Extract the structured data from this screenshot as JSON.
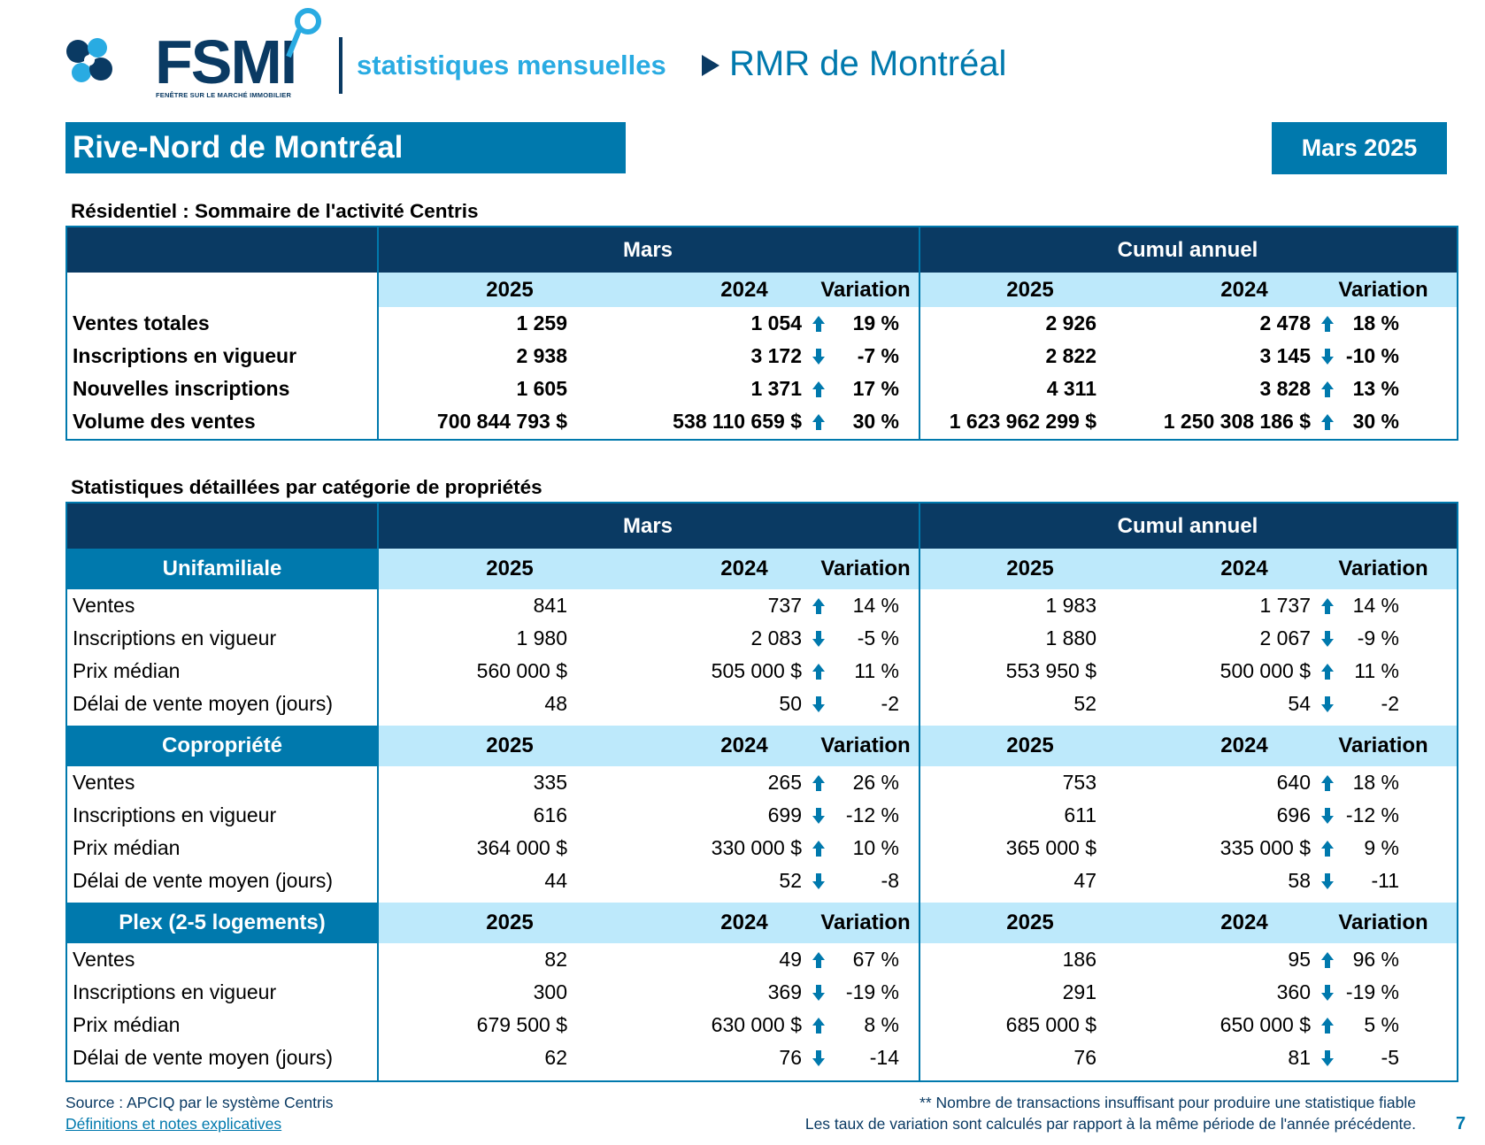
{
  "brand": {
    "logo_text": "FSMI",
    "logo_tagline": "FENÊTRE SUR LE MARCHÉ IMMOBILIER",
    "report_type": "statistiques mensuelles",
    "market": "RMR de Montréal"
  },
  "region": "Rive-Nord de Montréal",
  "period": "Mars 2025",
  "colors": {
    "dark_blue": "#0a3a63",
    "mid_blue": "#0079ad",
    "light_blue": "#bde9fb",
    "cyan": "#29abe2"
  },
  "summary": {
    "title": "Résidentiel : Sommaire de l'activité Centris",
    "group_month": "Mars",
    "group_ytd": "Cumul annuel",
    "col_2025": "2025",
    "col_2024": "2024",
    "col_var": "Variation",
    "rows": [
      {
        "label": "Ventes totales",
        "m25": "1 259",
        "m24": "1 054",
        "mdir": "up",
        "mvar": "19 %",
        "y25": "2 926",
        "y24": "2 478",
        "ydir": "up",
        "yvar": "18 %"
      },
      {
        "label": "Inscriptions en vigueur",
        "m25": "2 938",
        "m24": "3 172",
        "mdir": "down",
        "mvar": "-7 %",
        "y25": "2 822",
        "y24": "3 145",
        "ydir": "down",
        "yvar": "-10 %"
      },
      {
        "label": "Nouvelles inscriptions",
        "m25": "1 605",
        "m24": "1 371",
        "mdir": "up",
        "mvar": "17 %",
        "y25": "4 311",
        "y24": "3 828",
        "ydir": "up",
        "yvar": "13 %"
      },
      {
        "label": "Volume des ventes",
        "m25": "700 844 793  $",
        "m24": "538 110 659  $",
        "mdir": "up",
        "mvar": "30 %",
        "y25": "1 623 962 299  $",
        "y24": "1 250 308 186  $",
        "ydir": "up",
        "yvar": "30 %"
      }
    ]
  },
  "detail": {
    "title": "Statistiques détaillées par catégorie de propriétés",
    "group_month": "Mars",
    "group_ytd": "Cumul annuel",
    "col_2025": "2025",
    "col_2024": "2024",
    "col_var": "Variation",
    "categories": [
      {
        "name": "Unifamiliale",
        "rows": [
          {
            "label": "Ventes",
            "m25": "841",
            "m24": "737",
            "mdir": "up",
            "mvar": "14 %",
            "y25": "1 983",
            "y24": "1 737",
            "ydir": "up",
            "yvar": "14 %"
          },
          {
            "label": "Inscriptions en vigueur",
            "m25": "1 980",
            "m24": "2 083",
            "mdir": "down",
            "mvar": "-5 %",
            "y25": "1 880",
            "y24": "2 067",
            "ydir": "down",
            "yvar": "-9 %"
          },
          {
            "label": "Prix médian",
            "m25": "560 000 $",
            "m24": "505 000 $",
            "mdir": "up",
            "mvar": "11 %",
            "y25": "553 950 $",
            "y24": "500 000 $",
            "ydir": "up",
            "yvar": "11 %"
          },
          {
            "label": "Délai de vente moyen (jours)",
            "m25": "48",
            "m24": "50",
            "mdir": "down",
            "mvar": "-2",
            "y25": "52",
            "y24": "54",
            "ydir": "down",
            "yvar": "-2"
          }
        ]
      },
      {
        "name": "Copropriété",
        "rows": [
          {
            "label": "Ventes",
            "m25": "335",
            "m24": "265",
            "mdir": "up",
            "mvar": "26 %",
            "y25": "753",
            "y24": "640",
            "ydir": "up",
            "yvar": "18 %"
          },
          {
            "label": "Inscriptions en vigueur",
            "m25": "616",
            "m24": "699",
            "mdir": "down",
            "mvar": "-12 %",
            "y25": "611",
            "y24": "696",
            "ydir": "down",
            "yvar": "-12 %"
          },
          {
            "label": "Prix médian",
            "m25": "364 000 $",
            "m24": "330 000 $",
            "mdir": "up",
            "mvar": "10 %",
            "y25": "365 000 $",
            "y24": "335 000 $",
            "ydir": "up",
            "yvar": "9 %"
          },
          {
            "label": "Délai de vente moyen (jours)",
            "m25": "44",
            "m24": "52",
            "mdir": "down",
            "mvar": "-8",
            "y25": "47",
            "y24": "58",
            "ydir": "down",
            "yvar": "-11"
          }
        ]
      },
      {
        "name": "Plex (2-5 logements)",
        "rows": [
          {
            "label": "Ventes",
            "m25": "82",
            "m24": "49",
            "mdir": "up",
            "mvar": "67 %",
            "y25": "186",
            "y24": "95",
            "ydir": "up",
            "yvar": "96 %"
          },
          {
            "label": "Inscriptions en vigueur",
            "m25": "300",
            "m24": "369",
            "mdir": "down",
            "mvar": "-19 %",
            "y25": "291",
            "y24": "360",
            "ydir": "down",
            "yvar": "-19 %"
          },
          {
            "label": "Prix médian",
            "m25": "679 500 $",
            "m24": "630 000 $",
            "mdir": "up",
            "mvar": "8 %",
            "y25": "685 000 $",
            "y24": "650 000 $",
            "ydir": "up",
            "yvar": "5 %"
          },
          {
            "label": "Délai de vente moyen (jours)",
            "m25": "62",
            "m24": "76",
            "mdir": "down",
            "mvar": "-14",
            "y25": "76",
            "y24": "81",
            "ydir": "down",
            "yvar": "-5"
          }
        ]
      }
    ]
  },
  "footer": {
    "source": "Source : APCIQ par le système Centris",
    "definitions_link": "Définitions et notes explicatives",
    "note_insufficient": "** Nombre de transactions insuffisant pour produire une statistique fiable",
    "note_variation": "Les taux de variation sont calculés par rapport à la même période de l'année précédente.",
    "page_number": "7"
  }
}
